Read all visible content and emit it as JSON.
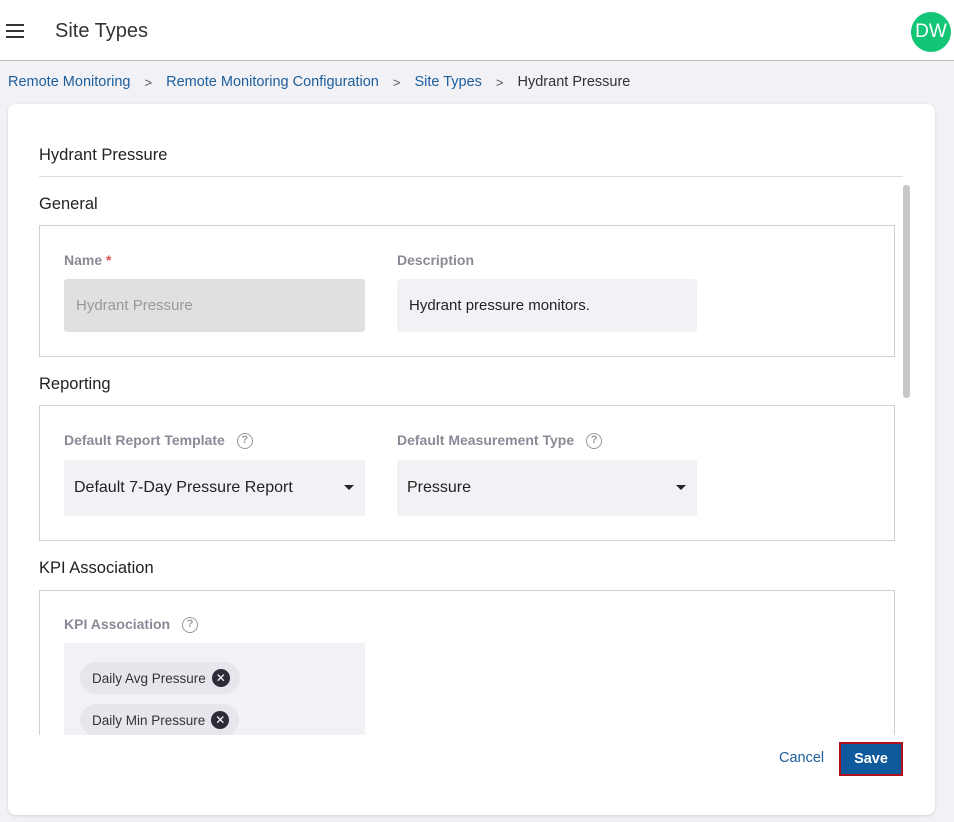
{
  "header": {
    "title": "Site Types",
    "avatar": "DW",
    "menu_icon": "hamburger-icon"
  },
  "breadcrumb": [
    "Remote Monitoring",
    "Remote Monitoring Configuration",
    "Site Types",
    "Hydrant Pressure"
  ],
  "form": {
    "title": "Hydrant Pressure",
    "general": {
      "title": "General",
      "name_label": "Name",
      "required": "*",
      "name_value": "Hydrant Pressure",
      "description_label": "Description",
      "description_value": "Hydrant pressure monitors."
    },
    "reporting": {
      "title": "Reporting",
      "template_label": "Default Report Template",
      "template_value": "Default 7-Day Pressure Report",
      "measurement_label": "Default Measurement Type",
      "measurement_value": "Pressure"
    },
    "kpi": {
      "title": "KPI Association",
      "label": "KPI Association",
      "chips": [
        "Daily Avg Pressure",
        "Daily Min Pressure"
      ]
    },
    "help_glyph": "?"
  },
  "footer": {
    "cancel": "Cancel",
    "save": "Save"
  },
  "colors": {
    "accent": "#0e5a9c",
    "avatar": "#12c676",
    "link": "#1c5e9c"
  }
}
